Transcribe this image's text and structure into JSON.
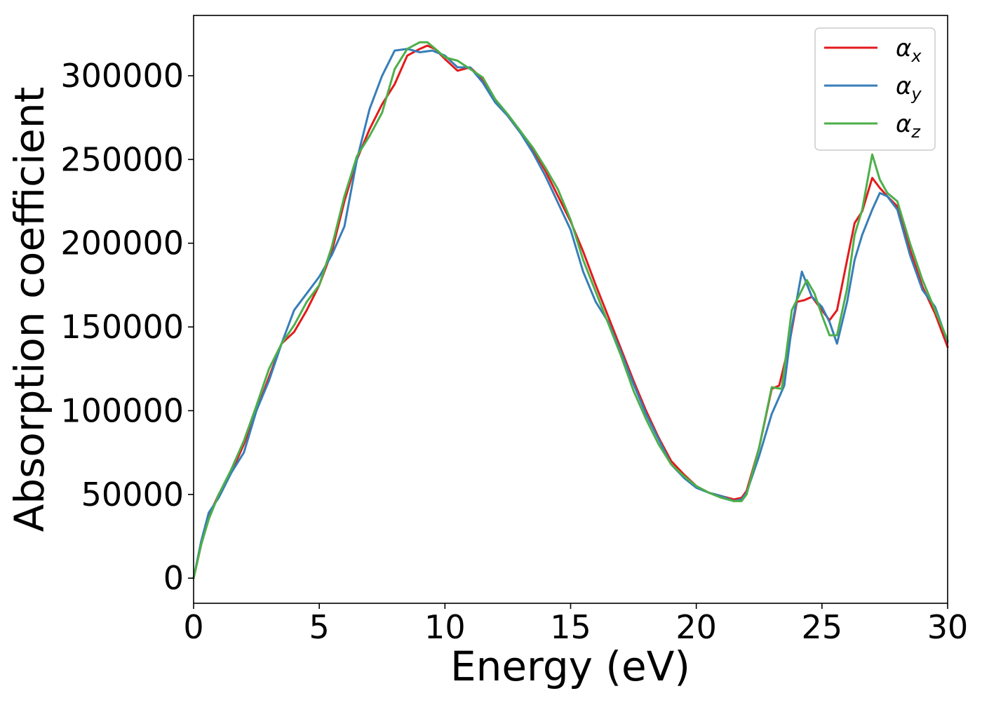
{
  "chart_data": {
    "type": "line",
    "xlabel": "Energy (eV)",
    "ylabel": "Absorption coefficient",
    "xlim": [
      0,
      30
    ],
    "ylim": [
      -15000,
      336000
    ],
    "x_ticks": [
      0,
      5,
      10,
      15,
      20,
      25,
      30
    ],
    "y_ticks": [
      0,
      50000,
      100000,
      150000,
      200000,
      250000,
      300000
    ],
    "grid": false,
    "legend_position": "top-right",
    "series": [
      {
        "name": "αx",
        "label_base": "α",
        "label_sub": "x",
        "color": "#e41a1c",
        "points": [
          [
            0,
            0
          ],
          [
            0.3,
            20000
          ],
          [
            0.6,
            37000
          ],
          [
            1,
            50000
          ],
          [
            1.5,
            63000
          ],
          [
            2,
            80000
          ],
          [
            2.5,
            100000
          ],
          [
            3,
            120000
          ],
          [
            3.5,
            140000
          ],
          [
            4,
            147000
          ],
          [
            4.5,
            160000
          ],
          [
            5,
            175000
          ],
          [
            5.5,
            195000
          ],
          [
            6,
            225000
          ],
          [
            6.5,
            250000
          ],
          [
            7,
            268000
          ],
          [
            7.5,
            283000
          ],
          [
            8,
            295000
          ],
          [
            8.5,
            312000
          ],
          [
            9,
            316000
          ],
          [
            9.3,
            318000
          ],
          [
            9.6,
            316000
          ],
          [
            10,
            310000
          ],
          [
            10.5,
            303000
          ],
          [
            11,
            305000
          ],
          [
            11.5,
            298000
          ],
          [
            12,
            285000
          ],
          [
            12.5,
            276000
          ],
          [
            13,
            266000
          ],
          [
            13.5,
            256000
          ],
          [
            14,
            243000
          ],
          [
            14.5,
            228000
          ],
          [
            15,
            213000
          ],
          [
            15.5,
            195000
          ],
          [
            16,
            175000
          ],
          [
            16.5,
            156000
          ],
          [
            17,
            137000
          ],
          [
            17.5,
            118000
          ],
          [
            18,
            100000
          ],
          [
            18.5,
            84000
          ],
          [
            19,
            70000
          ],
          [
            19.5,
            62000
          ],
          [
            20,
            55000
          ],
          [
            20.5,
            51000
          ],
          [
            21,
            49000
          ],
          [
            21.5,
            47000
          ],
          [
            21.8,
            48000
          ],
          [
            22,
            52000
          ],
          [
            22.5,
            78000
          ],
          [
            23,
            113000
          ],
          [
            23.3,
            115000
          ],
          [
            23.7,
            140000
          ],
          [
            24,
            165000
          ],
          [
            24.3,
            166000
          ],
          [
            24.6,
            168000
          ],
          [
            25,
            160000
          ],
          [
            25.3,
            154000
          ],
          [
            25.6,
            160000
          ],
          [
            26,
            190000
          ],
          [
            26.3,
            212000
          ],
          [
            26.6,
            219000
          ],
          [
            27,
            239000
          ],
          [
            27.3,
            233000
          ],
          [
            27.6,
            228000
          ],
          [
            28,
            222000
          ],
          [
            28.5,
            196000
          ],
          [
            29,
            174000
          ],
          [
            29.5,
            158000
          ],
          [
            30,
            138000
          ]
        ]
      },
      {
        "name": "αy",
        "label_base": "α",
        "label_sub": "y",
        "color": "#377eb8",
        "points": [
          [
            0,
            0
          ],
          [
            0.3,
            22000
          ],
          [
            0.6,
            39000
          ],
          [
            1,
            48000
          ],
          [
            1.5,
            63000
          ],
          [
            2,
            75000
          ],
          [
            2.5,
            100000
          ],
          [
            3,
            118000
          ],
          [
            3.5,
            140000
          ],
          [
            4,
            160000
          ],
          [
            4.5,
            170000
          ],
          [
            5,
            180000
          ],
          [
            5.5,
            193000
          ],
          [
            6,
            210000
          ],
          [
            6.5,
            250000
          ],
          [
            7,
            280000
          ],
          [
            7.5,
            300000
          ],
          [
            8,
            315000
          ],
          [
            8.5,
            316000
          ],
          [
            9,
            314000
          ],
          [
            9.5,
            315000
          ],
          [
            10,
            312000
          ],
          [
            10.5,
            305000
          ],
          [
            11,
            305000
          ],
          [
            11.5,
            296000
          ],
          [
            12,
            284000
          ],
          [
            12.5,
            276000
          ],
          [
            13,
            266000
          ],
          [
            13.5,
            254000
          ],
          [
            14,
            240000
          ],
          [
            14.5,
            224000
          ],
          [
            15,
            208000
          ],
          [
            15.5,
            183000
          ],
          [
            16,
            165000
          ],
          [
            16.5,
            153000
          ],
          [
            17,
            135000
          ],
          [
            17.5,
            116000
          ],
          [
            18,
            98000
          ],
          [
            18.5,
            83000
          ],
          [
            19,
            68000
          ],
          [
            19.5,
            60000
          ],
          [
            20,
            54000
          ],
          [
            20.5,
            51000
          ],
          [
            21,
            49000
          ],
          [
            21.5,
            46000
          ],
          [
            21.8,
            47000
          ],
          [
            22,
            51000
          ],
          [
            22.5,
            73000
          ],
          [
            23,
            98000
          ],
          [
            23.5,
            115000
          ],
          [
            23.8,
            150000
          ],
          [
            24.2,
            183000
          ],
          [
            24.6,
            168000
          ],
          [
            25,
            162000
          ],
          [
            25.3,
            153000
          ],
          [
            25.6,
            140000
          ],
          [
            26,
            165000
          ],
          [
            26.3,
            190000
          ],
          [
            26.6,
            205000
          ],
          [
            27,
            220000
          ],
          [
            27.3,
            230000
          ],
          [
            27.6,
            228000
          ],
          [
            28,
            220000
          ],
          [
            28.5,
            193000
          ],
          [
            29,
            172000
          ],
          [
            29.5,
            162000
          ],
          [
            30,
            141000
          ]
        ]
      },
      {
        "name": "αz",
        "label_base": "α",
        "label_sub": "z",
        "color": "#4daf4a",
        "points": [
          [
            0,
            0
          ],
          [
            0.3,
            20000
          ],
          [
            0.6,
            35000
          ],
          [
            1,
            50000
          ],
          [
            1.5,
            65000
          ],
          [
            2,
            82000
          ],
          [
            2.5,
            103000
          ],
          [
            3,
            125000
          ],
          [
            3.5,
            140000
          ],
          [
            4,
            151000
          ],
          [
            4.5,
            165000
          ],
          [
            5,
            175000
          ],
          [
            5.5,
            198000
          ],
          [
            6,
            228000
          ],
          [
            6.5,
            252000
          ],
          [
            7,
            264000
          ],
          [
            7.5,
            278000
          ],
          [
            8,
            304000
          ],
          [
            8.5,
            316000
          ],
          [
            9,
            320000
          ],
          [
            9.3,
            320000
          ],
          [
            9.7,
            315000
          ],
          [
            10,
            311000
          ],
          [
            10.5,
            309000
          ],
          [
            11,
            304000
          ],
          [
            11.5,
            299000
          ],
          [
            12,
            286000
          ],
          [
            12.5,
            277000
          ],
          [
            13,
            267000
          ],
          [
            13.5,
            257000
          ],
          [
            14,
            245000
          ],
          [
            14.5,
            232000
          ],
          [
            15,
            214000
          ],
          [
            15.5,
            190000
          ],
          [
            16,
            171000
          ],
          [
            16.5,
            152000
          ],
          [
            17,
            133000
          ],
          [
            17.5,
            112000
          ],
          [
            18,
            95000
          ],
          [
            18.5,
            80000
          ],
          [
            19,
            68000
          ],
          [
            19.5,
            61000
          ],
          [
            20,
            55000
          ],
          [
            20.5,
            51000
          ],
          [
            21,
            48000
          ],
          [
            21.5,
            46000
          ],
          [
            21.8,
            46000
          ],
          [
            22,
            50000
          ],
          [
            22.5,
            78000
          ],
          [
            23,
            114000
          ],
          [
            23.4,
            113000
          ],
          [
            23.8,
            160000
          ],
          [
            24.4,
            178000
          ],
          [
            24.7,
            170000
          ],
          [
            25,
            157000
          ],
          [
            25.3,
            145000
          ],
          [
            25.6,
            145000
          ],
          [
            26,
            173000
          ],
          [
            26.3,
            205000
          ],
          [
            26.6,
            220000
          ],
          [
            27,
            253000
          ],
          [
            27.3,
            238000
          ],
          [
            27.6,
            230000
          ],
          [
            28,
            225000
          ],
          [
            28.5,
            200000
          ],
          [
            29,
            178000
          ],
          [
            29.5,
            160000
          ],
          [
            30,
            142000
          ]
        ]
      }
    ]
  }
}
